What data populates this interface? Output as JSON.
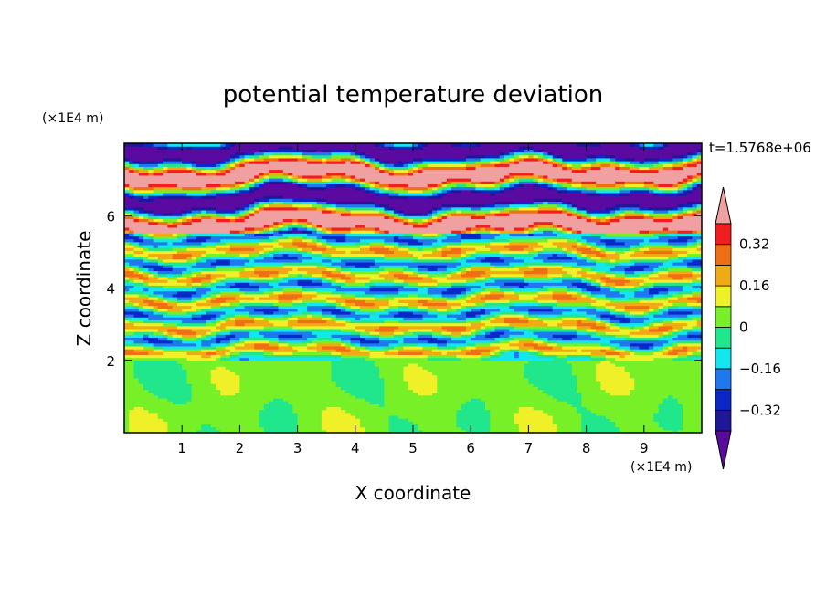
{
  "chart_data": {
    "type": "heatmap",
    "title": "potential temperature deviation",
    "xlabel": "X coordinate",
    "ylabel": "Z coordinate",
    "x_unit": "(×1E4 m)",
    "y_unit": "(×1E4 m)",
    "time_label": "t=1.5768e+06",
    "xlim": [
      0,
      10
    ],
    "ylim": [
      0,
      8
    ],
    "x_ticks": [
      "1",
      "2",
      "3",
      "4",
      "5",
      "6",
      "7",
      "8",
      "9"
    ],
    "y_ticks": [
      "2",
      "4",
      "6"
    ],
    "colorbar": {
      "labels": [
        "0.32",
        "0.16",
        "0",
        "−0.16",
        "−0.32"
      ],
      "label_values": [
        0.32,
        0.16,
        0,
        -0.16,
        -0.32
      ],
      "levels": [
        -0.4,
        -0.32,
        -0.24,
        -0.16,
        -0.08,
        0,
        0.08,
        0.16,
        0.24,
        0.32,
        0.4
      ],
      "colors": [
        "#5a0aa0",
        "#20169a",
        "#0a28c8",
        "#1e78f0",
        "#14e6f0",
        "#20e68c",
        "#78f028",
        "#f0f028",
        "#f0aa14",
        "#f06e14",
        "#f01e1e",
        "#f0a0a0"
      ],
      "extend": "both"
    },
    "field_description": "near-neutral deviation below z≈2 (green/lime patches); banded wavy layers of ±0.2 between z=2 and z=5.5; strong alternating purple and pink bands (below −0.4 / above 0.4) above z≈5.5"
  }
}
